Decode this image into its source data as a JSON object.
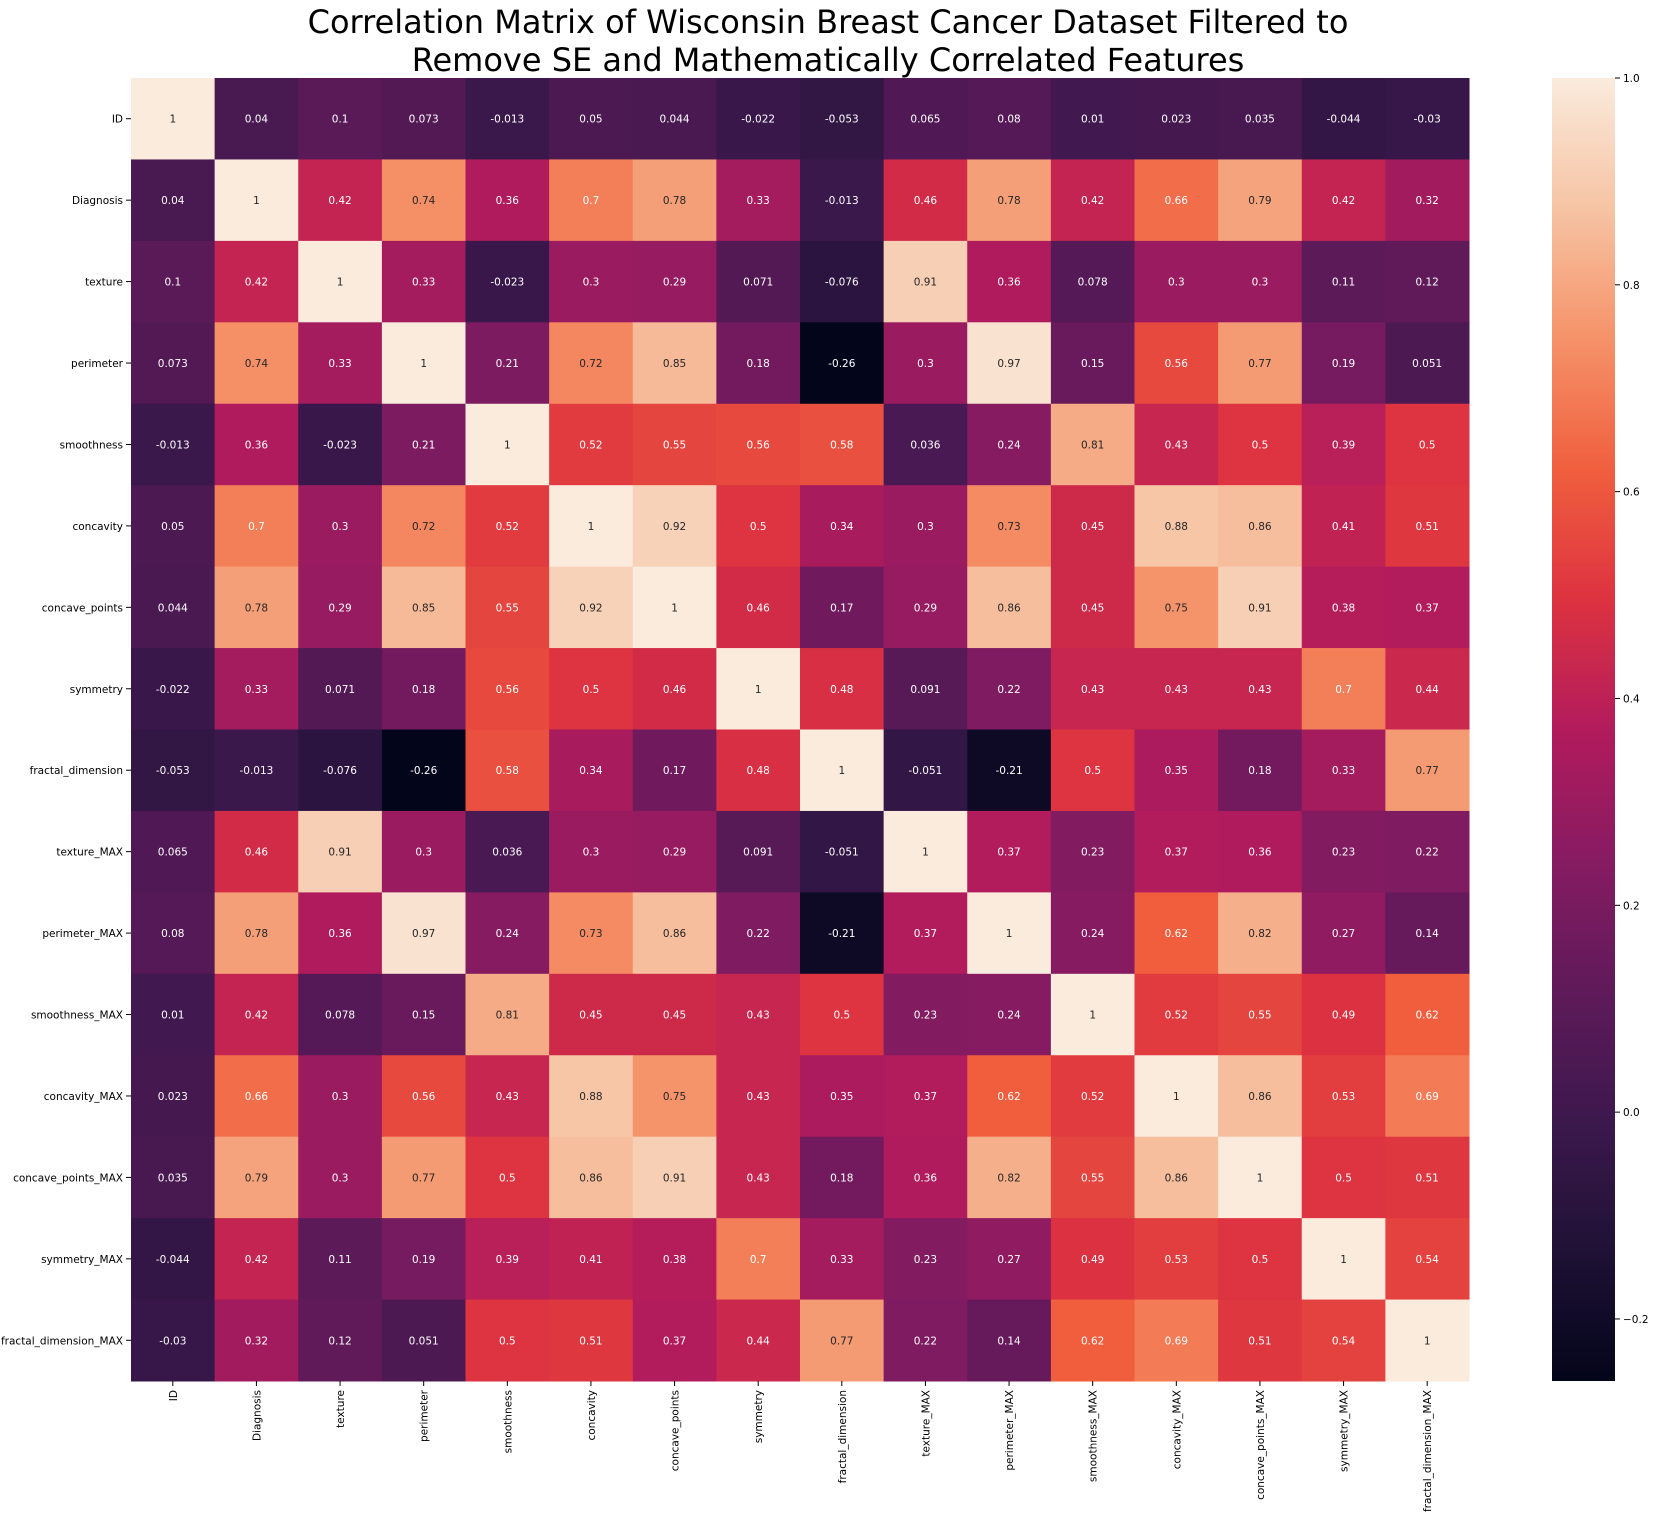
{
  "chart_data": {
    "type": "heatmap",
    "title_lines": [
      "Correlation Matrix of Wisconsin Breast Cancer Dataset Filtered to",
      "Remove SE and Mathematically Correlated Features"
    ],
    "labels": [
      "ID",
      "Diagnosis",
      "texture",
      "perimeter",
      "smoothness",
      "concavity",
      "concave_points",
      "symmetry",
      "fractal_dimension",
      "texture_MAX",
      "perimeter_MAX",
      "smoothness_MAX",
      "concavity_MAX",
      "concave_points_MAX",
      "symmetry_MAX",
      "fractal_dimension_MAX"
    ],
    "values": [
      [
        1,
        0.04,
        0.1,
        0.073,
        -0.013,
        0.05,
        0.044,
        -0.022,
        -0.053,
        0.065,
        0.08,
        0.01,
        0.023,
        0.035,
        -0.044,
        -0.03
      ],
      [
        0.04,
        1,
        0.42,
        0.74,
        0.36,
        0.7,
        0.78,
        0.33,
        -0.013,
        0.46,
        0.78,
        0.42,
        0.66,
        0.79,
        0.42,
        0.32
      ],
      [
        0.1,
        0.42,
        1,
        0.33,
        -0.023,
        0.3,
        0.29,
        0.071,
        -0.076,
        0.91,
        0.36,
        0.078,
        0.3,
        0.3,
        0.11,
        0.12
      ],
      [
        0.073,
        0.74,
        0.33,
        1,
        0.21,
        0.72,
        0.85,
        0.18,
        -0.26,
        0.3,
        0.97,
        0.15,
        0.56,
        0.77,
        0.19,
        0.051
      ],
      [
        -0.013,
        0.36,
        -0.023,
        0.21,
        1,
        0.52,
        0.55,
        0.56,
        0.58,
        0.036,
        0.24,
        0.81,
        0.43,
        0.5,
        0.39,
        0.5
      ],
      [
        0.05,
        0.7,
        0.3,
        0.72,
        0.52,
        1,
        0.92,
        0.5,
        0.34,
        0.3,
        0.73,
        0.45,
        0.88,
        0.86,
        0.41,
        0.51
      ],
      [
        0.044,
        0.78,
        0.29,
        0.85,
        0.55,
        0.92,
        1,
        0.46,
        0.17,
        0.29,
        0.86,
        0.45,
        0.75,
        0.91,
        0.38,
        0.37
      ],
      [
        -0.022,
        0.33,
        0.071,
        0.18,
        0.56,
        0.5,
        0.46,
        1,
        0.48,
        0.091,
        0.22,
        0.43,
        0.43,
        0.43,
        0.7,
        0.44
      ],
      [
        -0.053,
        -0.013,
        -0.076,
        -0.26,
        0.58,
        0.34,
        0.17,
        0.48,
        1,
        -0.051,
        -0.21,
        0.5,
        0.35,
        0.18,
        0.33,
        0.77
      ],
      [
        0.065,
        0.46,
        0.91,
        0.3,
        0.036,
        0.3,
        0.29,
        0.091,
        -0.051,
        1,
        0.37,
        0.23,
        0.37,
        0.36,
        0.23,
        0.22
      ],
      [
        0.08,
        0.78,
        0.36,
        0.97,
        0.24,
        0.73,
        0.86,
        0.22,
        -0.21,
        0.37,
        1,
        0.24,
        0.62,
        0.82,
        0.27,
        0.14
      ],
      [
        0.01,
        0.42,
        0.078,
        0.15,
        0.81,
        0.45,
        0.45,
        0.43,
        0.5,
        0.23,
        0.24,
        1,
        0.52,
        0.55,
        0.49,
        0.62
      ],
      [
        0.023,
        0.66,
        0.3,
        0.56,
        0.43,
        0.88,
        0.75,
        0.43,
        0.35,
        0.37,
        0.62,
        0.52,
        1,
        0.86,
        0.53,
        0.69
      ],
      [
        0.035,
        0.79,
        0.3,
        0.77,
        0.5,
        0.86,
        0.91,
        0.43,
        0.18,
        0.36,
        0.82,
        0.55,
        0.86,
        1,
        0.5,
        0.51
      ],
      [
        -0.044,
        0.42,
        0.11,
        0.19,
        0.39,
        0.41,
        0.38,
        0.7,
        0.33,
        0.23,
        0.27,
        0.49,
        0.53,
        0.5,
        1,
        0.54
      ],
      [
        -0.03,
        0.32,
        0.12,
        0.051,
        0.5,
        0.51,
        0.37,
        0.44,
        0.77,
        0.22,
        0.14,
        0.62,
        0.69,
        0.51,
        0.54,
        1
      ]
    ],
    "value_range": [
      -0.26,
      1
    ],
    "colorbar_ticks": [
      {
        "value": 1.0,
        "label": "1.0"
      },
      {
        "value": 0.8,
        "label": "0.8"
      },
      {
        "value": 0.6,
        "label": "0.6"
      },
      {
        "value": 0.4,
        "label": "0.4"
      },
      {
        "value": 0.2,
        "label": "0.2"
      },
      {
        "value": 0.0,
        "label": "0.0"
      },
      {
        "value": -0.2,
        "label": "−0.2"
      }
    ],
    "colormap": "rocket",
    "legend": "colorbar-right"
  }
}
